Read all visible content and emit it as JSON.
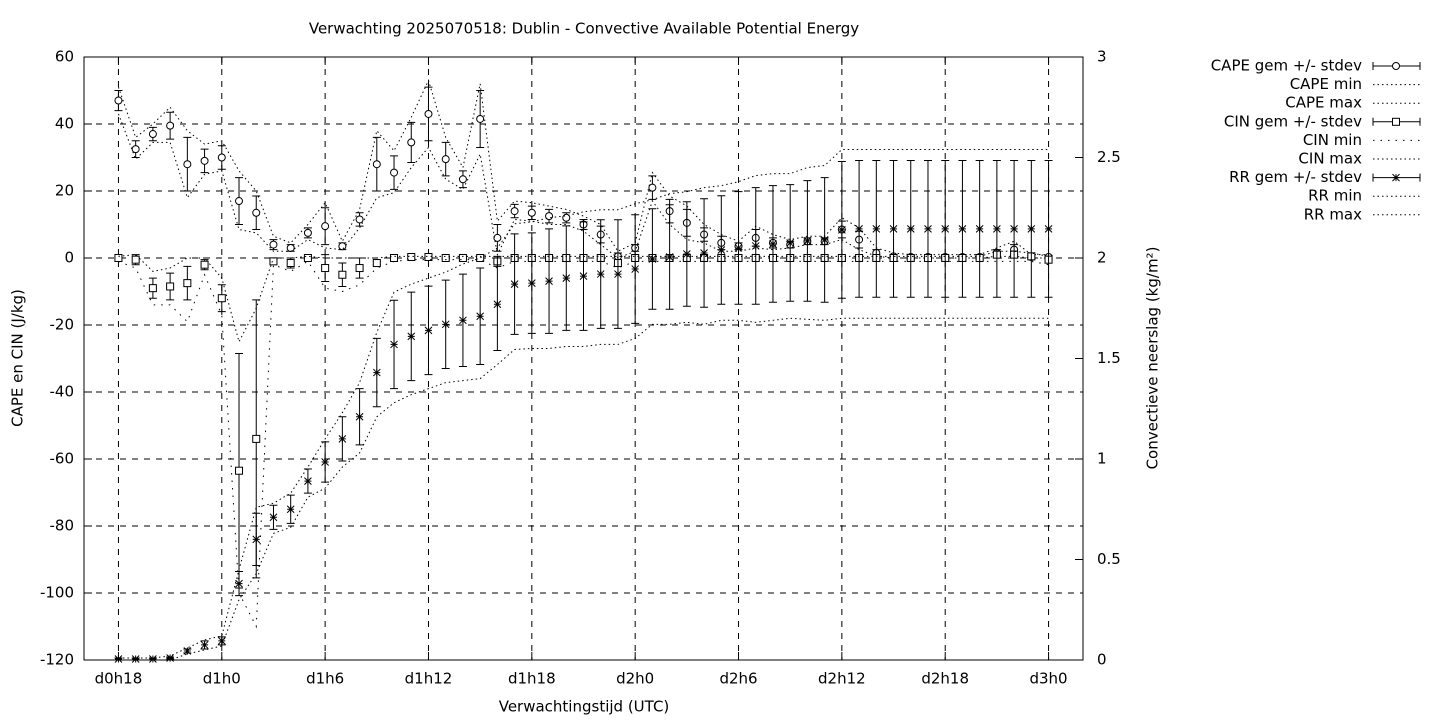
{
  "chart_data": {
    "type": "errorbar-line",
    "title": "Verwachting 2025070518: Dublin - Convective Available Potential Energy",
    "xlabel": "Verwachtingstijd (UTC)",
    "ylabel": "CAPE en CIN (J/kg)",
    "y2label": "Convectieve neerslag (kg/m²)",
    "xlim": [
      16,
      74
    ],
    "xticks": [
      {
        "value": 18,
        "label": "d0h18"
      },
      {
        "value": 24,
        "label": "d1h0"
      },
      {
        "value": 30,
        "label": "d1h6"
      },
      {
        "value": 36,
        "label": "d1h12"
      },
      {
        "value": 42,
        "label": "d1h18"
      },
      {
        "value": 48,
        "label": "d2h0"
      },
      {
        "value": 54,
        "label": "d2h6"
      },
      {
        "value": 60,
        "label": "d2h12"
      },
      {
        "value": 66,
        "label": "d2h18"
      },
      {
        "value": 72,
        "label": "d3h0"
      }
    ],
    "ylim": [
      -120,
      60
    ],
    "yticks": [
      -120,
      -100,
      -80,
      -60,
      -40,
      -20,
      0,
      20,
      40,
      60
    ],
    "y2lim": [
      0,
      3
    ],
    "y2ticks": [
      0,
      0.5,
      1,
      1.5,
      2,
      2.5,
      3
    ],
    "grid": true,
    "legend": "outside-right",
    "x": [
      18,
      19,
      20,
      21,
      22,
      23,
      24,
      25,
      26,
      27,
      28,
      29,
      30,
      31,
      32,
      33,
      34,
      35,
      36,
      37,
      38,
      39,
      40,
      41,
      42,
      43,
      44,
      45,
      46,
      47,
      48,
      49,
      50,
      51,
      52,
      53,
      54,
      55,
      56,
      57,
      58,
      59,
      60,
      61,
      62,
      63,
      64,
      65,
      66,
      67,
      68,
      69,
      70,
      71,
      72
    ],
    "series": [
      {
        "name": "CAPE gem +/- stdev",
        "color": "#000000",
        "marker": "circle",
        "axis": "y",
        "values": [
          47,
          32.5,
          37,
          39.5,
          28,
          29,
          30,
          17,
          13.5,
          4,
          3,
          7.5,
          9.5,
          3.5,
          11.5,
          28,
          25.5,
          34.5,
          43,
          29.5,
          23.5,
          41.5,
          6,
          14,
          13.5,
          12.5,
          12,
          10,
          7,
          0.5,
          3,
          21,
          14,
          10.5,
          7,
          4.5,
          3.5,
          6,
          4.5,
          4,
          5,
          5,
          8.5,
          5.5,
          1.5,
          0.5,
          0.3,
          0.3,
          0.3,
          0.3,
          0.3,
          1.5,
          2.5,
          0.3,
          0.3
        ],
        "errors": [
          3,
          2.5,
          2,
          4,
          8,
          3.5,
          3.5,
          7,
          5,
          1.5,
          1,
          1.5,
          5.5,
          1,
          2,
          8,
          5,
          6,
          8,
          5,
          2.5,
          8.5,
          4,
          2,
          2,
          2,
          1.5,
          1.5,
          2.5,
          1,
          1,
          3.5,
          3.5,
          4,
          2,
          2,
          1,
          2.5,
          1.5,
          1,
          1,
          1,
          2.5,
          2.5,
          1,
          0.5,
          0.5,
          0.5,
          0.5,
          0.5,
          0.5,
          1,
          1.5,
          0.5,
          0.5
        ]
      },
      {
        "name": "CAPE min",
        "color": "#000000",
        "style": "dotted",
        "axis": "y",
        "values": [
          43,
          29.5,
          34.5,
          34.5,
          18,
          25,
          26,
          8.5,
          7.5,
          2,
          2,
          5.5,
          3,
          2.5,
          9,
          18,
          19.5,
          27,
          33,
          23.5,
          20.5,
          31,
          1,
          11.5,
          11,
          10,
          10,
          8,
          4,
          0,
          2,
          17,
          10,
          5.5,
          4.5,
          2,
          2,
          3,
          2.5,
          3,
          4,
          4,
          5.5,
          2.5,
          0.5,
          0,
          0,
          0,
          0,
          0,
          0,
          0.5,
          0.5,
          0,
          0
        ]
      },
      {
        "name": "CAPE max",
        "color": "#000000",
        "style": "dotted",
        "axis": "y",
        "values": [
          51,
          36,
          40,
          45,
          38,
          34,
          35,
          26,
          20,
          6.5,
          4.5,
          10,
          16.5,
          5,
          14.5,
          38,
          32,
          42,
          53,
          36,
          27,
          52,
          11,
          17,
          16.5,
          15.5,
          14.5,
          12.5,
          10,
          2,
          4.5,
          25.5,
          18.5,
          15.5,
          10,
          7,
          5,
          9.5,
          7,
          5.5,
          6.5,
          6.5,
          12,
          9,
          3,
          1.5,
          1,
          1,
          1,
          1,
          1,
          3,
          5,
          1,
          1
        ]
      },
      {
        "name": "CIN gem +/- stdev",
        "color": "#000000",
        "marker": "square",
        "axis": "y",
        "values": [
          0,
          -0.5,
          -9,
          -8.5,
          -7.5,
          -2,
          -12,
          -63.5,
          -54,
          -1,
          -1.5,
          0,
          -3,
          -5,
          -3,
          -1.5,
          0,
          0.3,
          0.3,
          0,
          0,
          0,
          -1,
          0,
          0,
          0,
          0,
          0,
          0,
          -1.5,
          0,
          0,
          0,
          0,
          0,
          0,
          0,
          0,
          0,
          0,
          0,
          0,
          0,
          0,
          0,
          0,
          0,
          0,
          0,
          0,
          0,
          1,
          1,
          0.5,
          -0.5
        ],
        "errors": [
          1,
          1.5,
          3,
          4,
          5,
          1.5,
          4,
          35,
          41.5,
          0.5,
          1.5,
          0.5,
          4,
          3.5,
          3,
          0.5,
          0.5,
          0.5,
          0.5,
          0.3,
          0.3,
          0.3,
          1.5,
          0.5,
          0.5,
          0.5,
          0.5,
          0.5,
          0.5,
          1,
          0.5,
          0.5,
          0.5,
          0.5,
          0.5,
          0.5,
          0.5,
          0.5,
          0.5,
          0.5,
          0.5,
          0.5,
          0.5,
          0.5,
          0.5,
          0.5,
          0.5,
          0.5,
          0.5,
          0.5,
          0.5,
          1,
          1,
          1,
          1
        ]
      },
      {
        "name": "CIN min",
        "color": "#000000",
        "style": "sparse",
        "axis": "y",
        "values": [
          -1,
          -3,
          -14,
          -14,
          -19,
          -5,
          -17,
          -100,
          -110,
          -2,
          -4,
          -1,
          -9,
          -10,
          -8,
          -3,
          -1,
          -0.5,
          -0.5,
          -0.5,
          -0.5,
          -0.5,
          -3,
          -1,
          -1,
          -1,
          -1,
          -1,
          -1,
          -3,
          -1,
          -1,
          -1,
          -1,
          -1,
          -1,
          -1,
          -1,
          -1,
          -1,
          -1,
          -1,
          -1,
          -1,
          -1,
          -1,
          -1,
          -1,
          -1,
          -1,
          -1,
          -1,
          -1,
          -1,
          -2
        ]
      },
      {
        "name": "CIN max",
        "color": "#000000",
        "style": "dotted",
        "axis": "y",
        "values": [
          0.5,
          1,
          -4,
          -3,
          0,
          0,
          -6,
          -25,
          -15,
          0,
          0,
          0.5,
          0,
          0,
          0,
          0,
          0.5,
          0.5,
          0.5,
          0.5,
          0.5,
          0.5,
          0.5,
          0.5,
          0.5,
          0.5,
          0.5,
          0.5,
          0.5,
          0.5,
          0.5,
          0.5,
          0.5,
          0.5,
          0.5,
          0.5,
          0.5,
          0.5,
          0.5,
          0.5,
          0.5,
          0.5,
          0.5,
          0.5,
          0.5,
          0.5,
          0.5,
          0.5,
          0.5,
          0.5,
          0.5,
          2,
          2,
          1.5,
          0.5
        ]
      },
      {
        "name": "RR gem +/- stdev",
        "color": "#000000",
        "marker": "star",
        "axis": "y2",
        "values": [
          0.005,
          0.005,
          0.005,
          0.01,
          0.045,
          0.075,
          0.095,
          0.38,
          0.6,
          0.71,
          0.75,
          0.89,
          0.985,
          1.1,
          1.21,
          1.43,
          1.57,
          1.61,
          1.64,
          1.67,
          1.69,
          1.71,
          1.77,
          1.87,
          1.875,
          1.885,
          1.9,
          1.91,
          1.92,
          1.92,
          1.945,
          1.995,
          2.005,
          2.02,
          2.025,
          2.04,
          2.05,
          2.06,
          2.07,
          2.075,
          2.085,
          2.09,
          2.14,
          2.145,
          2.145,
          2.145,
          2.145,
          2.145,
          2.145,
          2.145,
          2.145,
          2.145,
          2.145,
          2.145,
          2.145
        ],
        "errors": [
          0.005,
          0.005,
          0.005,
          0.005,
          0.01,
          0.02,
          0.02,
          0.06,
          0.13,
          0.06,
          0.07,
          0.06,
          0.1,
          0.11,
          0.14,
          0.17,
          0.22,
          0.22,
          0.22,
          0.22,
          0.23,
          0.24,
          0.23,
          0.25,
          0.25,
          0.26,
          0.26,
          0.27,
          0.27,
          0.27,
          0.27,
          0.25,
          0.26,
          0.26,
          0.27,
          0.27,
          0.28,
          0.29,
          0.29,
          0.29,
          0.3,
          0.31,
          0.34,
          0.34,
          0.34,
          0.34,
          0.34,
          0.34,
          0.34,
          0.34,
          0.34,
          0.34,
          0.34,
          0.34,
          0.34
        ]
      },
      {
        "name": "RR min",
        "color": "#000000",
        "style": "dotted",
        "axis": "y2",
        "values": [
          0,
          0,
          0,
          0,
          0.03,
          0.05,
          0.07,
          0.3,
          0.43,
          0.63,
          0.66,
          0.81,
          0.855,
          0.96,
          1.03,
          1.21,
          1.28,
          1.32,
          1.35,
          1.38,
          1.39,
          1.4,
          1.47,
          1.545,
          1.55,
          1.55,
          1.56,
          1.56,
          1.57,
          1.57,
          1.6,
          1.67,
          1.67,
          1.68,
          1.67,
          1.69,
          1.69,
          1.68,
          1.69,
          1.7,
          1.695,
          1.69,
          1.7,
          1.7,
          1.7,
          1.7,
          1.7,
          1.7,
          1.7,
          1.7,
          1.7,
          1.7,
          1.7,
          1.7,
          1.7
        ]
      },
      {
        "name": "RR max",
        "color": "#000000",
        "style": "dotted",
        "axis": "y2",
        "values": [
          0.01,
          0.01,
          0.01,
          0.02,
          0.06,
          0.1,
          0.12,
          0.45,
          0.76,
          0.78,
          0.83,
          0.96,
          1.1,
          1.23,
          1.38,
          1.63,
          1.83,
          1.87,
          1.9,
          1.93,
          1.97,
          2,
          2.05,
          2.17,
          2.18,
          2.2,
          2.21,
          2.23,
          2.24,
          2.24,
          2.27,
          2.29,
          2.32,
          2.33,
          2.35,
          2.36,
          2.38,
          2.41,
          2.42,
          2.42,
          2.45,
          2.46,
          2.54,
          2.54,
          2.54,
          2.54,
          2.54,
          2.54,
          2.54,
          2.54,
          2.54,
          2.54,
          2.54,
          2.54,
          2.54
        ]
      }
    ]
  }
}
